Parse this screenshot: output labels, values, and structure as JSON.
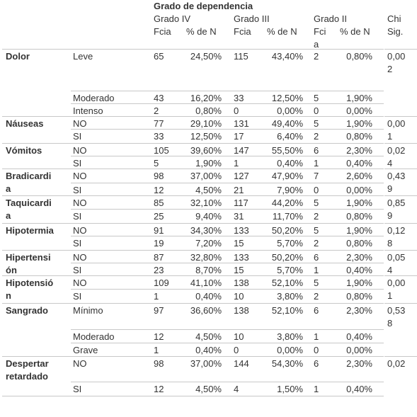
{
  "header": {
    "title": "Grado de dependencia",
    "g4": "Grado IV",
    "g3": "Grado III",
    "g2": "Grado II",
    "chi": "Chi",
    "fcia": "Fcia",
    "pct": "% de N",
    "fci": "Fci",
    "a": "a",
    "sig": "Sig."
  },
  "rows": [
    {
      "label": "Dolor",
      "cat": "Leve",
      "g4f": "65",
      "g4p": "24,50%",
      "g3f": "115",
      "g3p": "43,40%",
      "g2f": "2",
      "g2p": "0,80%",
      "chi1": "0,00",
      "chi2": "2"
    },
    {
      "label": "",
      "cat": "Moderado",
      "g4f": "43",
      "g4p": "16,20%",
      "g3f": "33",
      "g3p": "12,50%",
      "g2f": "5",
      "g2p": "1,90%",
      "chi1": "",
      "chi2": ""
    },
    {
      "label": "",
      "cat": "Intenso",
      "g4f": "2",
      "g4p": "0,80%",
      "g3f": "0",
      "g3p": "0,00%",
      "g2f": "0",
      "g2p": "0,00%",
      "chi1": "",
      "chi2": ""
    },
    {
      "label": "Náuseas",
      "cat": "NO",
      "g4f": "77",
      "g4p": "29,10%",
      "g3f": "131",
      "g3p": "49,40%",
      "g2f": "5",
      "g2p": "1,90%",
      "chi1": "0,00",
      "chi2": "1"
    },
    {
      "label": "",
      "cat": "SI",
      "g4f": "33",
      "g4p": "12,50%",
      "g3f": "17",
      "g3p": "6,40%",
      "g2f": "2",
      "g2p": "0,80%",
      "chi1": "",
      "chi2": ""
    },
    {
      "label": "Vómitos",
      "cat": "NO",
      "g4f": "105",
      "g4p": "39,60%",
      "g3f": "147",
      "g3p": "55,50%",
      "g2f": "6",
      "g2p": "2,30%",
      "chi1": "0,02",
      "chi2": "4"
    },
    {
      "label": "",
      "cat": "SI",
      "g4f": "5",
      "g4p": "1,90%",
      "g3f": "1",
      "g3p": "0,40%",
      "g2f": "1",
      "g2p": "0,40%",
      "chi1": "",
      "chi2": ""
    },
    {
      "label": "Bradicardi",
      "label2": "a",
      "cat": "NO",
      "g4f": "98",
      "g4p": "37,00%",
      "g3f": "127",
      "g3p": "47,90%",
      "g2f": "7",
      "g2p": "2,60%",
      "chi1": "0,43",
      "chi2": "9"
    },
    {
      "label": "",
      "cat": "SI",
      "g4f": "12",
      "g4p": "4,50%",
      "g3f": "21",
      "g3p": "7,90%",
      "g2f": "0",
      "g2p": "0,00%",
      "chi1": "",
      "chi2": ""
    },
    {
      "label": "Taquicardi",
      "label2": "a",
      "cat": "NO",
      "g4f": "85",
      "g4p": "32,10%",
      "g3f": "117",
      "g3p": "44,20%",
      "g2f": "5",
      "g2p": "1,90%",
      "chi1": "0,85",
      "chi2": "9"
    },
    {
      "label": "",
      "cat": "SI",
      "g4f": "25",
      "g4p": "9,40%",
      "g3f": "31",
      "g3p": "11,70%",
      "g2f": "2",
      "g2p": "0,80%",
      "chi1": "",
      "chi2": ""
    },
    {
      "label": "Hipotermia",
      "cat": "NO",
      "g4f": "91",
      "g4p": "34,30%",
      "g3f": "133",
      "g3p": "50,20%",
      "g2f": "5",
      "g2p": "1,90%",
      "chi1": "0,12",
      "chi2": "8"
    },
    {
      "label": "",
      "cat": "SI",
      "g4f": "19",
      "g4p": "7,20%",
      "g3f": "15",
      "g3p": "5,70%",
      "g2f": "2",
      "g2p": "0,80%",
      "chi1": "",
      "chi2": ""
    },
    {
      "label": "Hipertensi",
      "label2": "ón",
      "cat": "NO",
      "g4f": "87",
      "g4p": "32,80%",
      "g3f": "133",
      "g3p": "50,20%",
      "g2f": "6",
      "g2p": "2,30%",
      "chi1": "0,05",
      "chi2": "4"
    },
    {
      "label": "",
      "cat": "SI",
      "g4f": "23",
      "g4p": "8,70%",
      "g3f": "15",
      "g3p": "5,70%",
      "g2f": "1",
      "g2p": "0,40%",
      "chi1": "",
      "chi2": ""
    },
    {
      "label": "Hipotensió",
      "label2": "n",
      "cat": "NO",
      "g4f": "109",
      "g4p": "41,10%",
      "g3f": "138",
      "g3p": "52,10%",
      "g2f": "5",
      "g2p": "1,90%",
      "chi1": "0,00",
      "chi2": "1"
    },
    {
      "label": "",
      "cat": "SI",
      "g4f": "1",
      "g4p": "0,40%",
      "g3f": "10",
      "g3p": "3,80%",
      "g2f": "2",
      "g2p": "0,80%",
      "chi1": "",
      "chi2": ""
    },
    {
      "label": "Sangrado",
      "cat": "Mínimo",
      "g4f": "97",
      "g4p": "36,60%",
      "g3f": "138",
      "g3p": "52,10%",
      "g2f": "6",
      "g2p": "2,30%",
      "chi1": "0,53",
      "chi2": "8"
    },
    {
      "label": "",
      "cat": "Moderado",
      "g4f": "12",
      "g4p": "4,50%",
      "g3f": "10",
      "g3p": "3,80%",
      "g2f": "1",
      "g2p": "0,40%",
      "chi1": "",
      "chi2": ""
    },
    {
      "label": "",
      "cat": "Grave",
      "g4f": "1",
      "g4p": "0,40%",
      "g3f": "0",
      "g3p": "0,00%",
      "g2f": "0",
      "g2p": "0,00%",
      "chi1": "",
      "chi2": ""
    },
    {
      "label": "Despertar",
      "label2": "retardado",
      "cat": "NO",
      "g4f": "98",
      "g4p": "37,00%",
      "g3f": "144",
      "g3p": "54,30%",
      "g2f": "6",
      "g2p": "2,30%",
      "chi1": "0,02",
      "chi2": ""
    },
    {
      "label": "",
      "cat": "SI",
      "g4f": "12",
      "g4p": "4,50%",
      "g3f": "4",
      "g3p": "1,50%",
      "g2f": "1",
      "g2p": "0,40%",
      "chi1": "",
      "chi2": ""
    }
  ]
}
